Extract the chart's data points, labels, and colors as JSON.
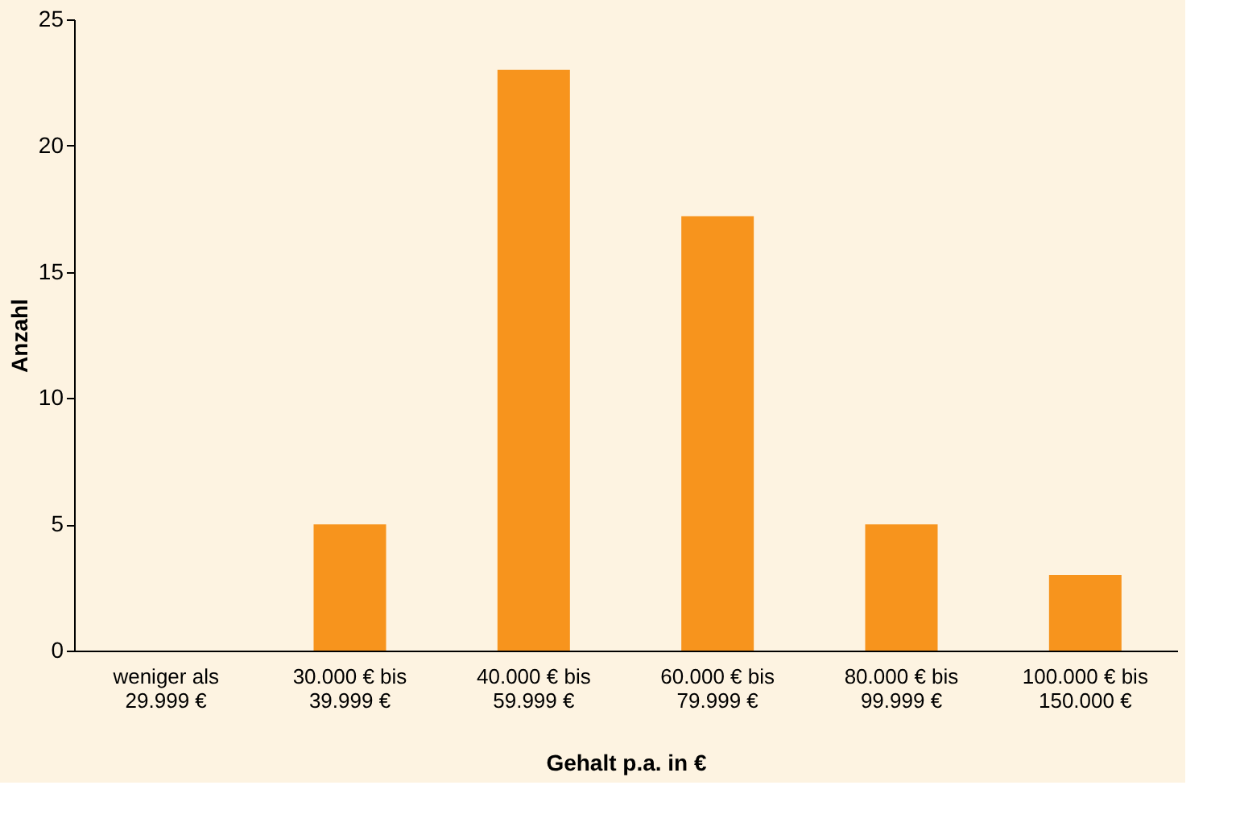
{
  "chart_data": {
    "type": "bar",
    "xlabel": "Gehalt p.a. in €",
    "ylabel": "Anzahl",
    "categories": [
      "weniger als 29.999 €",
      "30.000 € bis 39.999 €",
      "40.000 € bis 59.999 €",
      "60.000 € bis 79.999 €",
      "80.000 € bis 99.999 €",
      "100.000 € bis 150.000 €"
    ],
    "values": [
      0,
      5,
      23,
      17.2,
      5,
      3
    ],
    "color": "#f7941d",
    "ylim": [
      0,
      25
    ],
    "yticks": [
      0,
      5,
      10,
      15,
      20,
      25
    ],
    "grid": false
  }
}
